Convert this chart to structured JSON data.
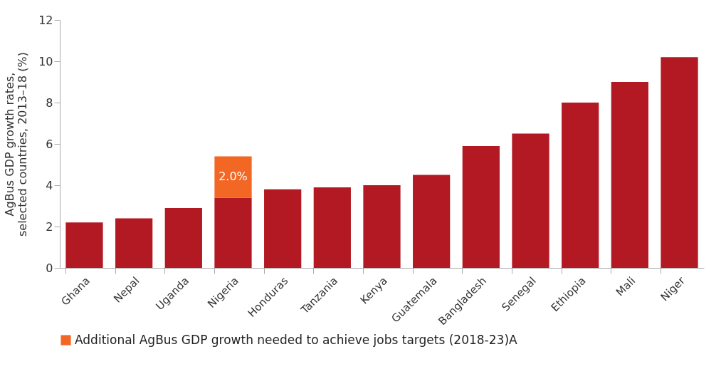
{
  "chart_data": {
    "type": "bar",
    "stacked": true,
    "ylabel": "AgBus GDP growth rates, selected countries, 2013–18 (%)",
    "categories": [
      "Ghana",
      "Nepal",
      "Uganda",
      "Nigeria",
      "Honduras",
      "Tanzania",
      "Kenya",
      "Guatemala",
      "Bangladesh",
      "Senegal",
      "Ethiopia",
      "Mali",
      "Niger"
    ],
    "series": [
      {
        "color": "#b31922",
        "values": [
          2.2,
          2.4,
          2.9,
          3.4,
          3.8,
          3.9,
          4.0,
          4.5,
          5.9,
          6.5,
          8.0,
          9.0,
          10.2
        ]
      },
      {
        "name": "Additional AgBus GDP growth needed to achieve jobs targets (2018-23)A",
        "color": "#f26724",
        "values": [
          null,
          null,
          null,
          2.0,
          null,
          null,
          null,
          null,
          null,
          null,
          null,
          null,
          null
        ],
        "value_labels": [
          null,
          null,
          null,
          "2.0%",
          null,
          null,
          null,
          null,
          null,
          null,
          null,
          null,
          null
        ]
      }
    ],
    "ylim": [
      0,
      12
    ],
    "yticks": [
      0,
      2,
      4,
      6,
      8,
      10,
      12
    ],
    "grid": false,
    "legend": "bottom"
  }
}
